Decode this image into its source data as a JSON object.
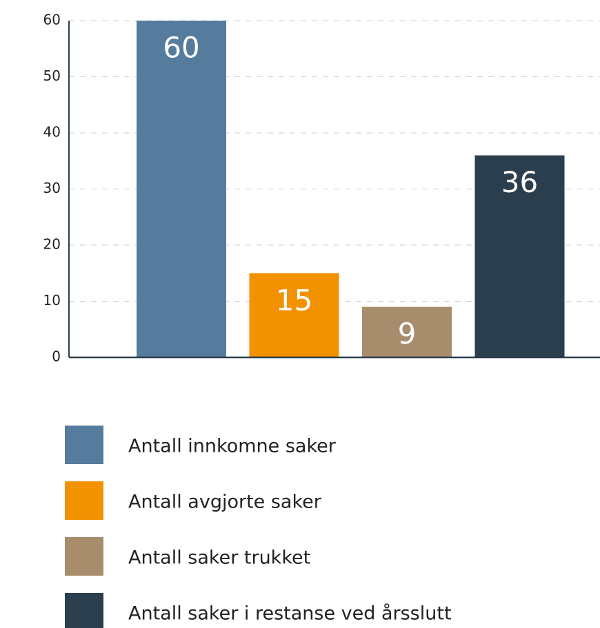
{
  "chart_data": {
    "type": "bar",
    "categories": [
      null
    ],
    "series": [
      {
        "name": "Antall innkomne saker",
        "color": "#557c9c",
        "values": [
          60
        ]
      },
      {
        "name": "Antall avgjorte saker",
        "color": "#f39200",
        "values": [
          15
        ]
      },
      {
        "name": "Antall saker trukket",
        "color": "#a88d6c",
        "values": [
          9
        ]
      },
      {
        "name": "Antall saker i restanse ved årsslutt",
        "color": "#2b3e4e",
        "values": [
          36
        ]
      }
    ],
    "ylim": [
      0,
      60
    ],
    "yticks": [
      0,
      10,
      20,
      30,
      40,
      50,
      60
    ],
    "grid": true,
    "legend": "bottom"
  }
}
